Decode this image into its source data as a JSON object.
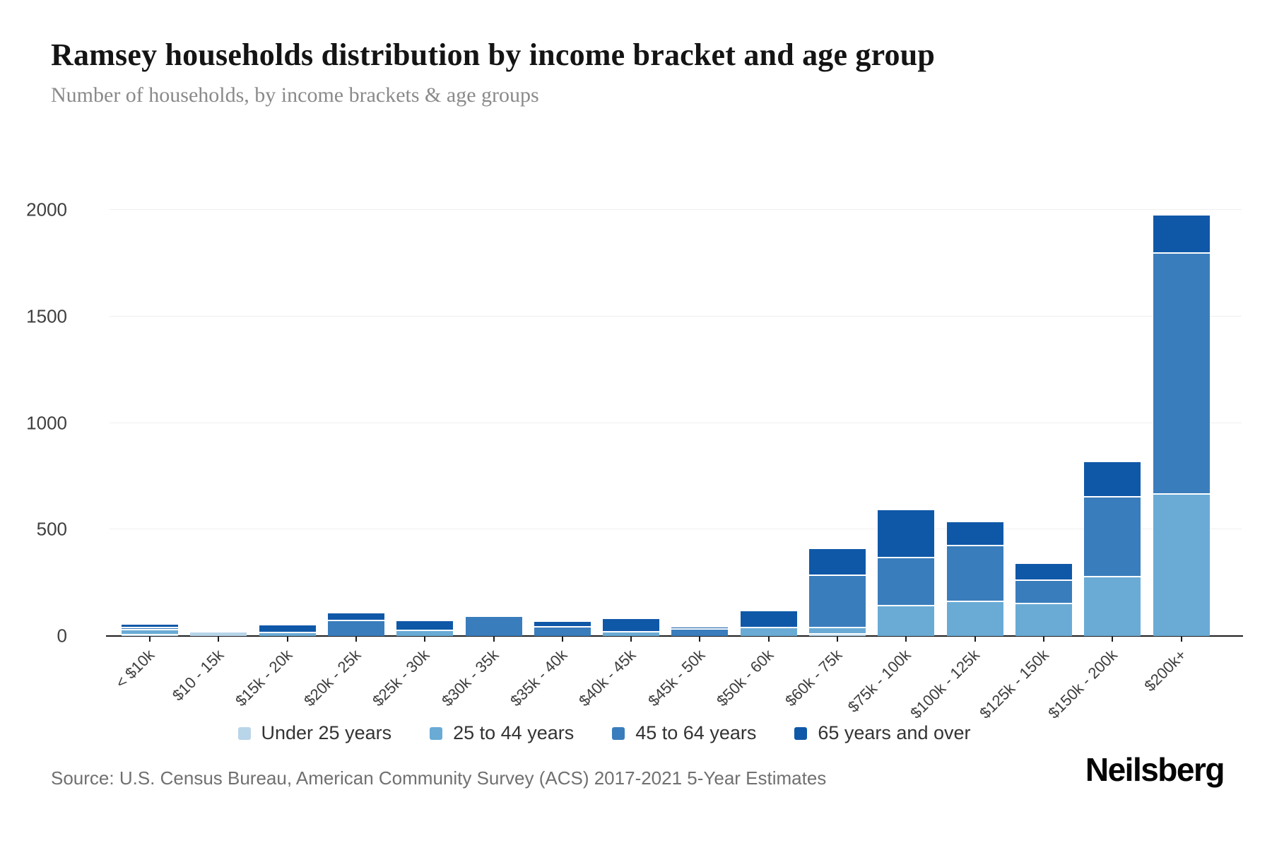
{
  "header": {
    "title": "Ramsey households distribution by income bracket and age group",
    "subtitle": "Number of households, by income brackets & age groups"
  },
  "chart_data": {
    "type": "bar",
    "stacked": true,
    "title": "Ramsey households distribution by income bracket and age group",
    "xlabel": "",
    "ylabel": "",
    "ylim": [
      0,
      2000
    ],
    "yticks": [
      0,
      500,
      1000,
      1500,
      2000
    ],
    "grid": "horizontal",
    "legend_position": "bottom",
    "categories": [
      "< $10k",
      "$10 - 15k",
      "$15k - 20k",
      "$20k - 25k",
      "$25k - 30k",
      "$30k - 35k",
      "$35k - 40k",
      "$40k - 45k",
      "$45k - 50k",
      "$50k - 60k",
      "$60k - 75k",
      "$75k - 100k",
      "$100k - 125k",
      "$125k - 150k",
      "$150k - 200k",
      "$200k+"
    ],
    "series": [
      {
        "name": "Under 25 years",
        "color": "#b9d5e9",
        "values": [
          5,
          15,
          0,
          0,
          0,
          0,
          0,
          0,
          0,
          0,
          8,
          0,
          0,
          0,
          0,
          0
        ]
      },
      {
        "name": "25 to 44 years",
        "color": "#6aabd6",
        "values": [
          20,
          0,
          12,
          0,
          24,
          0,
          0,
          15,
          0,
          38,
          30,
          140,
          160,
          150,
          275,
          665
        ]
      },
      {
        "name": "45 to 64 years",
        "color": "#3a7dbc",
        "values": [
          12,
          0,
          0,
          70,
          0,
          90,
          40,
          0,
          30,
          0,
          245,
          225,
          260,
          110,
          375,
          1130
        ]
      },
      {
        "name": "65 years and over",
        "color": "#0f58a8",
        "values": [
          16,
          0,
          38,
          36,
          45,
          0,
          25,
          65,
          10,
          78,
          125,
          225,
          115,
          80,
          165,
          180
        ]
      }
    ]
  },
  "footer": {
    "source": "Source: U.S. Census Bureau, American Community Survey (ACS) 2017-2021 5-Year Estimates",
    "brand": "Neilsberg"
  }
}
